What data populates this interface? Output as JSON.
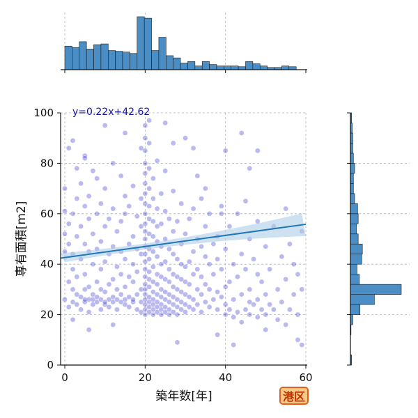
{
  "chart_data": {
    "type": "scatter",
    "title": "",
    "xlabel": "築年数[年]",
    "ylabel": "専有面積[m2]",
    "xlim": [
      -1,
      60
    ],
    "ylim": [
      0,
      100
    ],
    "x_ticks": [
      "0",
      "20",
      "40",
      "60"
    ],
    "y_ticks": [
      "0",
      "20",
      "40",
      "60",
      "80",
      "100"
    ],
    "grid": true,
    "regression": {
      "equation": "y=0.22x+42.62",
      "slope": 0.22,
      "intercept": 42.62,
      "color": "#1f77b4",
      "band_color": "#aecde6"
    },
    "scatter_color": "#1a1ac8",
    "points": [
      [
        0,
        26
      ],
      [
        0,
        45
      ],
      [
        0,
        52
      ],
      [
        0,
        61
      ],
      [
        0,
        70
      ],
      [
        1,
        23
      ],
      [
        1,
        33
      ],
      [
        1,
        48
      ],
      [
        1,
        56
      ],
      [
        1,
        86
      ],
      [
        2,
        25
      ],
      [
        2,
        30
      ],
      [
        2,
        38
      ],
      [
        2,
        44
      ],
      [
        2,
        60
      ],
      [
        2,
        89
      ],
      [
        3,
        24
      ],
      [
        3,
        28
      ],
      [
        3,
        35
      ],
      [
        3,
        51
      ],
      [
        3,
        66
      ],
      [
        3,
        78
      ],
      [
        4,
        22
      ],
      [
        4,
        27
      ],
      [
        4,
        42
      ],
      [
        4,
        55
      ],
      [
        4,
        72
      ],
      [
        5,
        25
      ],
      [
        5,
        26
      ],
      [
        5,
        30
      ],
      [
        5,
        36
      ],
      [
        5,
        48
      ],
      [
        5,
        63
      ],
      [
        5,
        83
      ],
      [
        6,
        21
      ],
      [
        6,
        26
      ],
      [
        6,
        31
      ],
      [
        6,
        45
      ],
      [
        6,
        58
      ],
      [
        6,
        67
      ],
      [
        7,
        24
      ],
      [
        7,
        26
      ],
      [
        7,
        28
      ],
      [
        7,
        40
      ],
      [
        7,
        52
      ],
      [
        7,
        77
      ],
      [
        8,
        25
      ],
      [
        8,
        27
      ],
      [
        8,
        33
      ],
      [
        8,
        46
      ],
      [
        8,
        60
      ],
      [
        8,
        74
      ],
      [
        9,
        22
      ],
      [
        9,
        26
      ],
      [
        9,
        30
      ],
      [
        9,
        38
      ],
      [
        9,
        49
      ],
      [
        9,
        64
      ],
      [
        10,
        24
      ],
      [
        10,
        25
      ],
      [
        10,
        29
      ],
      [
        10,
        41
      ],
      [
        10,
        55
      ],
      [
        10,
        70
      ],
      [
        11,
        23
      ],
      [
        11,
        26
      ],
      [
        11,
        32
      ],
      [
        11,
        44
      ],
      [
        11,
        58
      ],
      [
        12,
        25
      ],
      [
        12,
        27
      ],
      [
        12,
        34
      ],
      [
        12,
        47
      ],
      [
        12,
        62
      ],
      [
        12,
        80
      ],
      [
        13,
        22
      ],
      [
        13,
        26
      ],
      [
        13,
        30
      ],
      [
        13,
        39
      ],
      [
        13,
        53
      ],
      [
        14,
        25
      ],
      [
        14,
        28
      ],
      [
        14,
        36
      ],
      [
        14,
        45
      ],
      [
        14,
        57
      ],
      [
        14,
        75
      ],
      [
        15,
        24
      ],
      [
        15,
        26
      ],
      [
        15,
        31
      ],
      [
        15,
        42
      ],
      [
        15,
        60
      ],
      [
        15,
        67
      ],
      [
        16,
        23
      ],
      [
        16,
        27
      ],
      [
        16,
        35
      ],
      [
        16,
        48
      ],
      [
        16,
        63
      ],
      [
        17,
        25
      ],
      [
        17,
        26
      ],
      [
        17,
        33
      ],
      [
        17,
        40
      ],
      [
        17,
        51
      ],
      [
        17,
        71
      ],
      [
        18,
        22
      ],
      [
        18,
        28
      ],
      [
        18,
        37
      ],
      [
        18,
        46
      ],
      [
        18,
        59
      ],
      [
        19,
        21
      ],
      [
        19,
        25
      ],
      [
        19,
        30
      ],
      [
        19,
        44
      ],
      [
        19,
        55
      ],
      [
        19,
        66
      ],
      [
        19,
        86
      ],
      [
        20,
        20
      ],
      [
        20,
        22
      ],
      [
        20,
        24
      ],
      [
        20,
        26
      ],
      [
        20,
        28
      ],
      [
        20,
        30
      ],
      [
        20,
        32
      ],
      [
        20,
        35
      ],
      [
        20,
        38
      ],
      [
        20,
        41
      ],
      [
        20,
        44
      ],
      [
        20,
        47
      ],
      [
        20,
        50
      ],
      [
        20,
        53
      ],
      [
        20,
        56
      ],
      [
        20,
        60
      ],
      [
        20,
        64
      ],
      [
        20,
        68
      ],
      [
        20,
        72
      ],
      [
        20,
        76
      ],
      [
        20,
        80
      ],
      [
        20,
        85
      ],
      [
        20,
        90
      ],
      [
        20,
        95
      ],
      [
        21,
        21
      ],
      [
        21,
        23
      ],
      [
        21,
        25
      ],
      [
        21,
        27
      ],
      [
        21,
        31
      ],
      [
        21,
        34
      ],
      [
        21,
        37
      ],
      [
        21,
        42
      ],
      [
        21,
        46
      ],
      [
        21,
        52
      ],
      [
        21,
        58
      ],
      [
        21,
        63
      ],
      [
        21,
        70
      ],
      [
        21,
        78
      ],
      [
        21,
        88
      ],
      [
        21,
        97
      ],
      [
        22,
        20
      ],
      [
        22,
        22
      ],
      [
        22,
        24
      ],
      [
        22,
        26
      ],
      [
        22,
        29
      ],
      [
        22,
        33
      ],
      [
        22,
        39
      ],
      [
        22,
        45
      ],
      [
        22,
        51
      ],
      [
        22,
        57
      ],
      [
        22,
        66
      ],
      [
        22,
        74
      ],
      [
        23,
        21
      ],
      [
        23,
        23
      ],
      [
        23,
        25
      ],
      [
        23,
        28
      ],
      [
        23,
        32
      ],
      [
        23,
        36
      ],
      [
        23,
        43
      ],
      [
        23,
        49
      ],
      [
        23,
        55
      ],
      [
        23,
        62
      ],
      [
        23,
        81
      ],
      [
        24,
        20
      ],
      [
        24,
        22
      ],
      [
        24,
        24
      ],
      [
        24,
        27
      ],
      [
        24,
        30
      ],
      [
        24,
        35
      ],
      [
        24,
        40
      ],
      [
        24,
        47
      ],
      [
        24,
        56
      ],
      [
        24,
        68
      ],
      [
        25,
        21
      ],
      [
        25,
        23
      ],
      [
        25,
        26
      ],
      [
        25,
        29
      ],
      [
        25,
        34
      ],
      [
        25,
        41
      ],
      [
        25,
        50
      ],
      [
        25,
        61
      ],
      [
        25,
        77
      ],
      [
        26,
        20
      ],
      [
        26,
        22
      ],
      [
        26,
        25
      ],
      [
        26,
        28
      ],
      [
        26,
        33
      ],
      [
        26,
        38
      ],
      [
        26,
        46
      ],
      [
        26,
        58
      ],
      [
        27,
        21
      ],
      [
        27,
        24
      ],
      [
        27,
        27
      ],
      [
        27,
        31
      ],
      [
        27,
        36
      ],
      [
        27,
        44
      ],
      [
        27,
        53
      ],
      [
        27,
        69
      ],
      [
        28,
        20
      ],
      [
        28,
        23
      ],
      [
        28,
        26
      ],
      [
        28,
        30
      ],
      [
        28,
        35
      ],
      [
        28,
        42
      ],
      [
        28,
        57
      ],
      [
        29,
        22
      ],
      [
        29,
        25
      ],
      [
        29,
        29
      ],
      [
        29,
        34
      ],
      [
        29,
        40
      ],
      [
        29,
        48
      ],
      [
        29,
        64
      ],
      [
        30,
        21
      ],
      [
        30,
        24
      ],
      [
        30,
        28
      ],
      [
        30,
        33
      ],
      [
        30,
        39
      ],
      [
        30,
        52
      ],
      [
        31,
        23
      ],
      [
        31,
        27
      ],
      [
        31,
        32
      ],
      [
        31,
        41
      ],
      [
        31,
        58
      ],
      [
        32,
        22
      ],
      [
        32,
        26
      ],
      [
        32,
        36
      ],
      [
        32,
        45
      ],
      [
        32,
        62
      ],
      [
        33,
        24
      ],
      [
        33,
        30
      ],
      [
        33,
        38
      ],
      [
        33,
        50
      ],
      [
        34,
        21
      ],
      [
        34,
        28
      ],
      [
        34,
        35
      ],
      [
        34,
        47
      ],
      [
        34,
        66
      ],
      [
        35,
        25
      ],
      [
        35,
        32
      ],
      [
        35,
        43
      ],
      [
        35,
        55
      ],
      [
        36,
        23
      ],
      [
        36,
        30
      ],
      [
        36,
        40
      ],
      [
        36,
        60
      ],
      [
        37,
        26
      ],
      [
        37,
        36
      ],
      [
        37,
        48
      ],
      [
        38,
        22
      ],
      [
        38,
        29
      ],
      [
        38,
        42
      ],
      [
        38,
        51
      ],
      [
        39,
        27
      ],
      [
        39,
        38
      ],
      [
        39,
        63
      ],
      [
        40,
        20
      ],
      [
        40,
        24
      ],
      [
        40,
        31
      ],
      [
        40,
        46
      ],
      [
        41,
        22
      ],
      [
        41,
        33
      ],
      [
        41,
        55
      ],
      [
        42,
        19
      ],
      [
        42,
        26
      ],
      [
        42,
        40
      ],
      [
        43,
        21
      ],
      [
        43,
        35
      ],
      [
        43,
        60
      ],
      [
        44,
        17
      ],
      [
        44,
        28
      ],
      [
        44,
        44
      ],
      [
        45,
        22
      ],
      [
        45,
        38
      ],
      [
        45,
        65
      ],
      [
        46,
        20
      ],
      [
        46,
        30
      ],
      [
        46,
        50
      ],
      [
        46,
        78
      ],
      [
        47,
        24
      ],
      [
        47,
        42
      ],
      [
        48,
        19
      ],
      [
        48,
        26
      ],
      [
        48,
        36
      ],
      [
        48,
        57
      ],
      [
        49,
        22
      ],
      [
        49,
        33
      ],
      [
        50,
        20
      ],
      [
        50,
        28
      ],
      [
        50,
        47
      ],
      [
        51,
        24
      ],
      [
        51,
        38
      ],
      [
        52,
        22
      ],
      [
        52,
        55
      ],
      [
        53,
        18
      ],
      [
        53,
        30
      ],
      [
        54,
        25
      ],
      [
        54,
        43
      ],
      [
        55,
        16
      ],
      [
        55,
        34
      ],
      [
        55,
        62
      ],
      [
        56,
        22
      ],
      [
        56,
        48
      ],
      [
        57,
        28
      ],
      [
        57,
        40
      ],
      [
        58,
        20
      ],
      [
        58,
        36
      ],
      [
        59,
        8
      ],
      [
        59,
        30
      ],
      [
        59,
        53
      ],
      [
        58,
        10
      ],
      [
        50,
        14
      ],
      [
        42,
        8
      ],
      [
        38,
        12
      ],
      [
        6,
        14
      ],
      [
        2,
        18
      ],
      [
        12,
        16
      ],
      [
        28,
        9
      ],
      [
        46,
        25
      ],
      [
        33,
        75
      ],
      [
        35,
        70
      ],
      [
        40,
        85
      ],
      [
        44,
        92
      ],
      [
        48,
        85
      ],
      [
        39,
        60
      ],
      [
        15,
        92
      ],
      [
        10,
        95
      ],
      [
        5,
        82
      ],
      [
        25,
        96
      ],
      [
        27,
        88
      ],
      [
        30,
        90
      ],
      [
        32,
        86
      ]
    ],
    "top_histogram": {
      "bin_start": 0,
      "bin_width": 1.8,
      "counts": [
        32,
        30,
        38,
        28,
        34,
        35,
        26,
        25,
        24,
        22,
        72,
        70,
        26,
        44,
        19,
        16,
        9,
        11,
        5,
        11,
        7,
        5,
        5,
        5,
        4,
        11,
        8,
        5,
        3,
        3,
        5,
        4
      ]
    },
    "right_histogram": {
      "bin_start": 0,
      "bin_width": 4,
      "counts": [
        2,
        0,
        0,
        1,
        4,
        16,
        40,
        85,
        15,
        11,
        19,
        20,
        13,
        10,
        13,
        12,
        7,
        5,
        5,
        7,
        5,
        4,
        4,
        3,
        2
      ]
    },
    "bar_color": "#4b8ec6"
  },
  "badge": {
    "label": "港区",
    "background": "#f6c987",
    "border": "#e0601c",
    "text_color": "#c43200"
  }
}
